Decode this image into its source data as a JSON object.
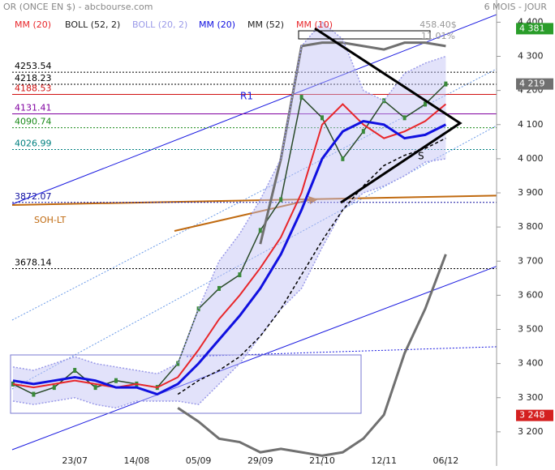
{
  "chart_data": {
    "type": "line",
    "title": "OR (ONCE EN $) - abcbourse.com",
    "period": "6 MOIS - JOUR",
    "annotations": {
      "range": "458.40$",
      "pct": "11.01%",
      "r1": "R1",
      "soh": "SOH-LT",
      "s": "S"
    },
    "categories": [
      null,
      null,
      null,
      "23/07",
      null,
      null,
      "14/08",
      null,
      null,
      "05/09",
      null,
      null,
      "29/09",
      null,
      null,
      "21/10",
      null,
      null,
      "12/11",
      null,
      null,
      "06/12"
    ],
    "close": [
      3340,
      3310,
      3330,
      3380,
      3330,
      3350,
      3340,
      3330,
      3400,
      3560,
      3620,
      3660,
      3790,
      3880,
      4180,
      4120,
      4000,
      4080,
      4170,
      4120,
      4160,
      4219
    ],
    "series": [
      {
        "name": "MM (20)",
        "color": "#e8262a",
        "values": [
          3340,
          3330,
          3340,
          3350,
          3340,
          3330,
          3340,
          3330,
          3360,
          3440,
          3530,
          3600,
          3680,
          3770,
          3900,
          4100,
          4160,
          4100,
          4060,
          4080,
          4110,
          4160
        ]
      },
      {
        "name": "BOLL (52, 2)",
        "color": "#707070",
        "values": [
          null,
          null,
          null,
          null,
          null,
          null,
          null,
          null,
          null,
          null,
          null,
          null,
          3750,
          4000,
          4330,
          4340,
          4340,
          4330,
          4320,
          4340,
          4340,
          4330
        ],
        "lower": [
          null,
          null,
          null,
          null,
          null,
          null,
          null,
          null,
          3270,
          3230,
          3180,
          3170,
          3140,
          3150,
          3140,
          3130,
          3140,
          3180,
          3250,
          3430,
          3560,
          3720
        ]
      },
      {
        "name": "BOLL (20, 2)",
        "color": "#9a9ae8",
        "values": [
          3390,
          3380,
          3400,
          3420,
          3400,
          3390,
          3380,
          3370,
          3400,
          3560,
          3700,
          3780,
          3880,
          4000,
          4330,
          4400,
          4350,
          4200,
          4170,
          4250,
          4280,
          4300
        ],
        "lower": [
          3290,
          3280,
          3290,
          3300,
          3280,
          3270,
          3290,
          3290,
          3290,
          3280,
          3340,
          3400,
          3480,
          3560,
          3620,
          3740,
          3850,
          3900,
          3920,
          3950,
          3990,
          4000
        ]
      },
      {
        "name": "MM (20)",
        "color": "#1010e0",
        "values": [
          3350,
          3340,
          3350,
          3360,
          3350,
          3330,
          3330,
          3310,
          3340,
          3400,
          3470,
          3540,
          3620,
          3720,
          3850,
          4000,
          4080,
          4110,
          4100,
          4060,
          4070,
          4100
        ]
      },
      {
        "name": "MM (52)",
        "color": "#000000",
        "values": [
          null,
          null,
          null,
          null,
          null,
          null,
          null,
          null,
          3310,
          3350,
          3380,
          3420,
          3480,
          3560,
          3660,
          3760,
          3850,
          3920,
          3980,
          4010,
          4030,
          4060
        ]
      },
      {
        "name": "MM (10)",
        "color": "#e8262a"
      }
    ],
    "levels": [
      {
        "value": 4253.54,
        "color": "#000000"
      },
      {
        "value": 4218.23,
        "color": "#000000"
      },
      {
        "value": 4188.53,
        "color": "#d01010"
      },
      {
        "value": 4131.41,
        "color": "#8000a0"
      },
      {
        "value": 4090.74,
        "color": "#1a8a1a"
      },
      {
        "value": 4026.99,
        "color": "#008080"
      },
      {
        "value": 3872.07,
        "color": "#1010a0"
      },
      {
        "value": 3678.14,
        "color": "#000000"
      }
    ],
    "price_labels": [
      {
        "value": 4381,
        "label": "4 381",
        "color": "#2a9d2a"
      },
      {
        "value": 4219,
        "label": "4 219",
        "color": "#707070"
      },
      {
        "value": 3248,
        "label": "3 248",
        "color": "#d42020"
      }
    ],
    "ylim": [
      3100,
      4465
    ],
    "yticks": [
      {
        "value": 3200,
        "label": "3 200"
      },
      {
        "value": 3300,
        "label": "3 300"
      },
      {
        "value": 3400,
        "label": "3 400"
      },
      {
        "value": 3500,
        "label": "3 500"
      },
      {
        "value": 3600,
        "label": "3 600"
      },
      {
        "value": 3700,
        "label": "3 700"
      },
      {
        "value": 3800,
        "label": "3 800"
      },
      {
        "value": 3900,
        "label": "3 900"
      },
      {
        "value": 4000,
        "label": "4 000"
      },
      {
        "value": 4100,
        "label": "4 100"
      },
      {
        "value": 4200,
        "label": "4 200"
      },
      {
        "value": 4300,
        "label": "4 300"
      },
      {
        "value": 4400,
        "label": "4 400"
      }
    ]
  }
}
